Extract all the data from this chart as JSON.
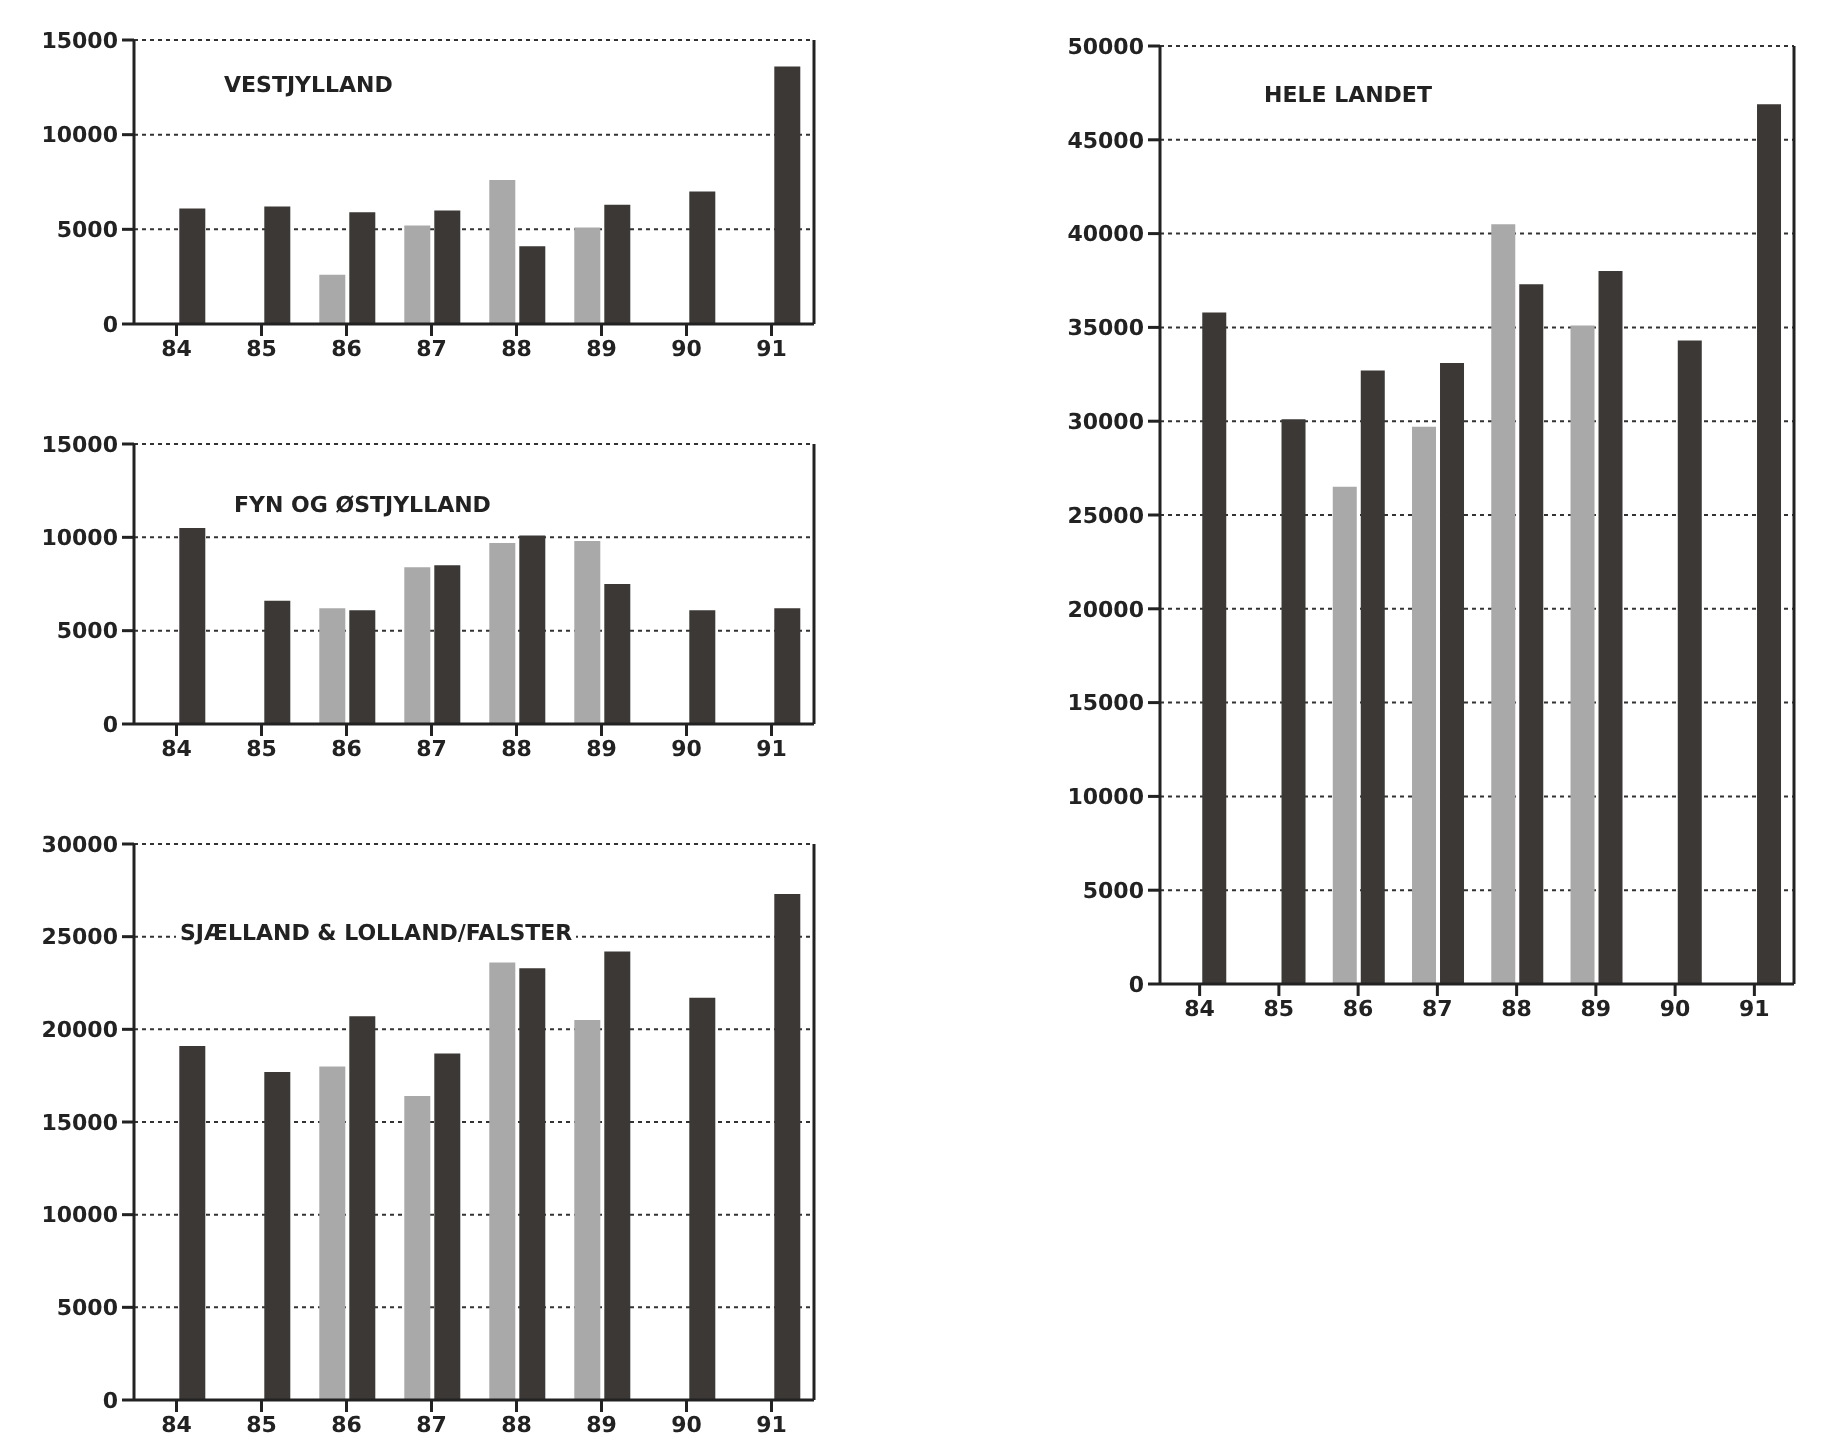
{
  "chart_data": [
    {
      "type": "bar",
      "title": "VESTJYLLAND",
      "categories": [
        "84",
        "85",
        "86",
        "87",
        "88",
        "89",
        "90",
        "91"
      ],
      "series": [
        {
          "color": "#a9a9a9",
          "values": [
            null,
            null,
            2600,
            5200,
            7600,
            5100,
            null,
            null
          ]
        },
        {
          "color": "#3b3836",
          "values": [
            6100,
            6200,
            5900,
            6000,
            4100,
            6300,
            7000,
            13600
          ]
        }
      ],
      "ylim": [
        0,
        15000
      ],
      "yticks": [
        0,
        5000,
        10000,
        15000
      ],
      "grid": "y"
    },
    {
      "type": "bar",
      "title": "FYN OG ØSTJYLLAND",
      "categories": [
        "84",
        "85",
        "86",
        "87",
        "88",
        "89",
        "90",
        "91"
      ],
      "series": [
        {
          "color": "#a9a9a9",
          "values": [
            null,
            null,
            6200,
            8400,
            9700,
            9800,
            null,
            null
          ]
        },
        {
          "color": "#3b3836",
          "values": [
            10500,
            6600,
            6100,
            8500,
            10100,
            7500,
            6100,
            6200
          ]
        }
      ],
      "ylim": [
        0,
        15000
      ],
      "yticks": [
        0,
        5000,
        10000,
        15000
      ],
      "grid": "y"
    },
    {
      "type": "bar",
      "title": "SJÆLLAND & LOLLAND/FALSTER",
      "categories": [
        "84",
        "85",
        "86",
        "87",
        "88",
        "89",
        "90",
        "91"
      ],
      "series": [
        {
          "color": "#a9a9a9",
          "values": [
            null,
            null,
            18000,
            16400,
            23600,
            20500,
            null,
            null
          ]
        },
        {
          "color": "#3b3836",
          "values": [
            19100,
            17700,
            20700,
            18700,
            23300,
            24200,
            21700,
            27300
          ]
        }
      ],
      "ylim": [
        0,
        30000
      ],
      "yticks": [
        0,
        5000,
        10000,
        15000,
        20000,
        25000,
        30000
      ],
      "grid": "y"
    },
    {
      "type": "bar",
      "title": "HELE LANDET",
      "categories": [
        "84",
        "85",
        "86",
        "87",
        "88",
        "89",
        "90",
        "91"
      ],
      "series": [
        {
          "color": "#a9a9a9",
          "values": [
            null,
            null,
            26500,
            29700,
            40500,
            35100,
            null,
            null
          ]
        },
        {
          "color": "#3b3836",
          "values": [
            35800,
            30100,
            32700,
            33100,
            37300,
            38000,
            34300,
            46900
          ]
        }
      ],
      "ylim": [
        0,
        50000
      ],
      "yticks": [
        0,
        5000,
        10000,
        15000,
        20000,
        25000,
        30000,
        35000,
        40000,
        45000,
        50000
      ],
      "grid": "y"
    }
  ]
}
